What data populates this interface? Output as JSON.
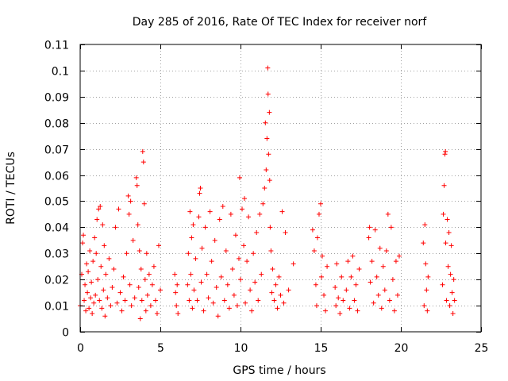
{
  "chart_data": {
    "type": "scatter",
    "title": "Day 285 of 2016, Rate Of TEC Index for receiver norf",
    "xlabel": "GPS time / hours",
    "ylabel": "ROTI / TECUs",
    "xlim": [
      0,
      25
    ],
    "ylim": [
      0,
      0.11
    ],
    "xticks": [
      0,
      5,
      10,
      15,
      20,
      25
    ],
    "xtick_labels": [
      "0",
      "5",
      "10",
      "15",
      "20",
      "25"
    ],
    "yticks": [
      0,
      0.01,
      0.02,
      0.03,
      0.04,
      0.05,
      0.06,
      0.07,
      0.08,
      0.09,
      0.1,
      0.11
    ],
    "ytick_labels": [
      "0",
      "0.01",
      "0.02",
      "0.03",
      "0.04",
      "0.05",
      "0.06",
      "0.07",
      "0.08",
      "0.09",
      "0.1",
      "0.11"
    ],
    "grid": true,
    "marker": "+",
    "color": "#ff0000",
    "series": [
      {
        "name": "ROTI",
        "points": [
          [
            0.0,
            0.01
          ],
          [
            0.1,
            0.022
          ],
          [
            0.15,
            0.034
          ],
          [
            0.2,
            0.037
          ],
          [
            0.25,
            0.012
          ],
          [
            0.3,
            0.018
          ],
          [
            0.35,
            0.008
          ],
          [
            0.4,
            0.026
          ],
          [
            0.45,
            0.015
          ],
          [
            0.5,
            0.023
          ],
          [
            0.55,
            0.009
          ],
          [
            0.6,
            0.031
          ],
          [
            0.65,
            0.013
          ],
          [
            0.7,
            0.019
          ],
          [
            0.75,
            0.007
          ],
          [
            0.8,
            0.027
          ],
          [
            0.85,
            0.011
          ],
          [
            0.9,
            0.036
          ],
          [
            0.95,
            0.014
          ],
          [
            1.0,
            0.03
          ],
          [
            1.05,
            0.043
          ],
          [
            1.1,
            0.02
          ],
          [
            1.15,
            0.047
          ],
          [
            1.2,
            0.012
          ],
          [
            1.25,
            0.048
          ],
          [
            1.3,
            0.025
          ],
          [
            1.35,
            0.009
          ],
          [
            1.4,
            0.041
          ],
          [
            1.45,
            0.016
          ],
          [
            1.5,
            0.033
          ],
          [
            1.55,
            0.006
          ],
          [
            1.6,
            0.022
          ],
          [
            1.7,
            0.013
          ],
          [
            1.8,
            0.028
          ],
          [
            1.9,
            0.01
          ],
          [
            2.0,
            0.017
          ],
          [
            2.1,
            0.024
          ],
          [
            2.2,
            0.04
          ],
          [
            2.3,
            0.011
          ],
          [
            2.4,
            0.047
          ],
          [
            2.5,
            0.015
          ],
          [
            2.6,
            0.008
          ],
          [
            2.7,
            0.021
          ],
          [
            2.8,
            0.012
          ],
          [
            2.9,
            0.03
          ],
          [
            3.0,
            0.052
          ],
          [
            3.05,
            0.045
          ],
          [
            3.1,
            0.018
          ],
          [
            3.15,
            0.05
          ],
          [
            3.2,
            0.01
          ],
          [
            3.3,
            0.035
          ],
          [
            3.4,
            0.013
          ],
          [
            3.5,
            0.059
          ],
          [
            3.55,
            0.056
          ],
          [
            3.6,
            0.041
          ],
          [
            3.65,
            0.017
          ],
          [
            3.7,
            0.031
          ],
          [
            3.75,
            0.005
          ],
          [
            3.8,
            0.024
          ],
          [
            3.85,
            0.012
          ],
          [
            3.9,
            0.069
          ],
          [
            3.95,
            0.065
          ],
          [
            4.0,
            0.049
          ],
          [
            4.05,
            0.02
          ],
          [
            4.1,
            0.008
          ],
          [
            4.15,
            0.03
          ],
          [
            4.2,
            0.014
          ],
          [
            4.3,
            0.022
          ],
          [
            4.4,
            0.01
          ],
          [
            4.5,
            0.018
          ],
          [
            4.6,
            0.025
          ],
          [
            4.7,
            0.012
          ],
          [
            4.8,
            0.007
          ],
          [
            4.9,
            0.033
          ],
          [
            5.0,
            0.016
          ],
          [
            5.9,
            0.022
          ],
          [
            5.95,
            0.015
          ],
          [
            6.0,
            0.01
          ],
          [
            6.05,
            0.018
          ],
          [
            6.1,
            0.007
          ],
          [
            6.7,
            0.018
          ],
          [
            6.75,
            0.03
          ],
          [
            6.8,
            0.012
          ],
          [
            6.85,
            0.046
          ],
          [
            6.9,
            0.022
          ],
          [
            6.95,
            0.036
          ],
          [
            7.0,
            0.009
          ],
          [
            7.05,
            0.041
          ],
          [
            7.1,
            0.016
          ],
          [
            7.2,
            0.028
          ],
          [
            7.3,
            0.012
          ],
          [
            7.4,
            0.044
          ],
          [
            7.45,
            0.053
          ],
          [
            7.5,
            0.055
          ],
          [
            7.55,
            0.019
          ],
          [
            7.6,
            0.032
          ],
          [
            7.7,
            0.008
          ],
          [
            7.8,
            0.04
          ],
          [
            7.9,
            0.022
          ],
          [
            8.0,
            0.013
          ],
          [
            8.1,
            0.046
          ],
          [
            8.2,
            0.027
          ],
          [
            8.3,
            0.011
          ],
          [
            8.4,
            0.035
          ],
          [
            8.5,
            0.017
          ],
          [
            8.6,
            0.006
          ],
          [
            8.7,
            0.043
          ],
          [
            8.8,
            0.021
          ],
          [
            8.9,
            0.048
          ],
          [
            9.0,
            0.012
          ],
          [
            9.1,
            0.031
          ],
          [
            9.2,
            0.018
          ],
          [
            9.3,
            0.009
          ],
          [
            9.4,
            0.045
          ],
          [
            9.5,
            0.024
          ],
          [
            9.6,
            0.014
          ],
          [
            9.7,
            0.037
          ],
          [
            9.8,
            0.01
          ],
          [
            9.9,
            0.028
          ],
          [
            9.95,
            0.059
          ],
          [
            10.0,
            0.02
          ],
          [
            10.1,
            0.047
          ],
          [
            10.2,
            0.033
          ],
          [
            10.25,
            0.051
          ],
          [
            10.3,
            0.011
          ],
          [
            10.4,
            0.027
          ],
          [
            10.5,
            0.044
          ],
          [
            10.6,
            0.016
          ],
          [
            10.7,
            0.008
          ],
          [
            10.8,
            0.03
          ],
          [
            10.9,
            0.019
          ],
          [
            11.0,
            0.038
          ],
          [
            11.1,
            0.012
          ],
          [
            11.2,
            0.045
          ],
          [
            11.3,
            0.022
          ],
          [
            11.4,
            0.049
          ],
          [
            11.5,
            0.055
          ],
          [
            11.55,
            0.08
          ],
          [
            11.6,
            0.062
          ],
          [
            11.65,
            0.074
          ],
          [
            11.7,
            0.101
          ],
          [
            11.72,
            0.091
          ],
          [
            11.75,
            0.068
          ],
          [
            11.8,
            0.084
          ],
          [
            11.82,
            0.058
          ],
          [
            11.85,
            0.04
          ],
          [
            11.9,
            0.031
          ],
          [
            11.95,
            0.015
          ],
          [
            12.0,
            0.024
          ],
          [
            12.1,
            0.012
          ],
          [
            12.2,
            0.018
          ],
          [
            12.3,
            0.009
          ],
          [
            12.4,
            0.021
          ],
          [
            12.5,
            0.014
          ],
          [
            12.6,
            0.046
          ],
          [
            12.7,
            0.011
          ],
          [
            12.8,
            0.038
          ],
          [
            13.0,
            0.016
          ],
          [
            13.3,
            0.026
          ],
          [
            14.5,
            0.039
          ],
          [
            14.6,
            0.031
          ],
          [
            14.7,
            0.018
          ],
          [
            14.75,
            0.01
          ],
          [
            14.8,
            0.036
          ],
          [
            14.9,
            0.045
          ],
          [
            15.0,
            0.049
          ],
          [
            15.05,
            0.021
          ],
          [
            15.1,
            0.029
          ],
          [
            15.2,
            0.014
          ],
          [
            15.3,
            0.008
          ],
          [
            15.4,
            0.025
          ],
          [
            15.9,
            0.017
          ],
          [
            15.95,
            0.01
          ],
          [
            16.0,
            0.026
          ],
          [
            16.1,
            0.013
          ],
          [
            16.2,
            0.007
          ],
          [
            16.3,
            0.021
          ],
          [
            16.4,
            0.012
          ],
          [
            16.6,
            0.016
          ],
          [
            16.7,
            0.027
          ],
          [
            16.8,
            0.009
          ],
          [
            16.9,
            0.021
          ],
          [
            17.0,
            0.029
          ],
          [
            17.1,
            0.012
          ],
          [
            17.2,
            0.018
          ],
          [
            17.3,
            0.008
          ],
          [
            17.4,
            0.024
          ],
          [
            18.0,
            0.036
          ],
          [
            18.05,
            0.04
          ],
          [
            18.1,
            0.019
          ],
          [
            18.2,
            0.027
          ],
          [
            18.3,
            0.011
          ],
          [
            18.4,
            0.039
          ],
          [
            18.5,
            0.021
          ],
          [
            18.6,
            0.014
          ],
          [
            18.7,
            0.032
          ],
          [
            18.8,
            0.009
          ],
          [
            18.9,
            0.025
          ],
          [
            19.0,
            0.016
          ],
          [
            19.1,
            0.031
          ],
          [
            19.2,
            0.045
          ],
          [
            19.3,
            0.012
          ],
          [
            19.4,
            0.04
          ],
          [
            19.5,
            0.02
          ],
          [
            19.6,
            0.008
          ],
          [
            19.7,
            0.027
          ],
          [
            19.8,
            0.014
          ],
          [
            19.9,
            0.029
          ],
          [
            21.4,
            0.034
          ],
          [
            21.45,
            0.01
          ],
          [
            21.5,
            0.041
          ],
          [
            21.55,
            0.026
          ],
          [
            21.6,
            0.016
          ],
          [
            21.65,
            0.008
          ],
          [
            21.7,
            0.021
          ],
          [
            22.6,
            0.018
          ],
          [
            22.65,
            0.045
          ],
          [
            22.7,
            0.056
          ],
          [
            22.75,
            0.068
          ],
          [
            22.78,
            0.069
          ],
          [
            22.8,
            0.034
          ],
          [
            22.85,
            0.012
          ],
          [
            22.9,
            0.043
          ],
          [
            22.95,
            0.025
          ],
          [
            23.0,
            0.038
          ],
          [
            23.05,
            0.01
          ],
          [
            23.1,
            0.022
          ],
          [
            23.15,
            0.033
          ],
          [
            23.2,
            0.015
          ],
          [
            23.25,
            0.007
          ],
          [
            23.3,
            0.02
          ],
          [
            23.35,
            0.012
          ]
        ]
      }
    ]
  }
}
